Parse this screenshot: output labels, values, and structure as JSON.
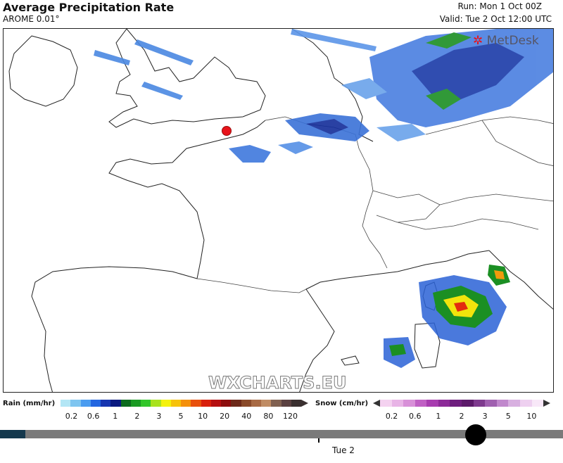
{
  "header": {
    "title": "Average Precipitation Rate",
    "model": "AROME 0.01°",
    "run": "Run: Mon 1 Oct 00Z",
    "valid": "Valid: Tue 2 Oct 12:00 UTC"
  },
  "map": {
    "brand": "MetDesk",
    "watermark": "WXCHARTS.EU",
    "marker_color": "#e8131b"
  },
  "legend": {
    "rain": {
      "title": "Rain (mm/hr)",
      "ticks": [
        "0.2",
        "0.6",
        "1",
        "2",
        "3",
        "5",
        "10",
        "20",
        "40",
        "80",
        "120"
      ],
      "colors": [
        "#b3e6f5",
        "#7ec5f0",
        "#4a9cf0",
        "#2266e0",
        "#1635b0",
        "#0a1a80",
        "#0d6b1e",
        "#1a9a22",
        "#33c62a",
        "#a9e21e",
        "#f4f20c",
        "#f6c20a",
        "#f4900a",
        "#e8500c",
        "#d8200c",
        "#b50f10",
        "#8c0d0d",
        "#6d2a1a",
        "#8a4a2a",
        "#a86a44",
        "#c08c64",
        "#806050",
        "#5a4040",
        "#3a3030"
      ]
    },
    "snow": {
      "title": "Snow (cm/hr)",
      "ticks": [
        "0.2",
        "0.6",
        "1",
        "2",
        "3",
        "5",
        "10"
      ],
      "colors": [
        "#f4d2f0",
        "#e8b4e6",
        "#d890d8",
        "#c060c4",
        "#a83cb0",
        "#8c2a98",
        "#6e1e7e",
        "#5c1a6a",
        "#7e3a8e",
        "#a060b0",
        "#c088cc",
        "#d8b0e0",
        "#eed0f0",
        "#f8e8f8"
      ]
    }
  },
  "timeline": {
    "day_label": "Tue 2",
    "progress": 0.85
  }
}
